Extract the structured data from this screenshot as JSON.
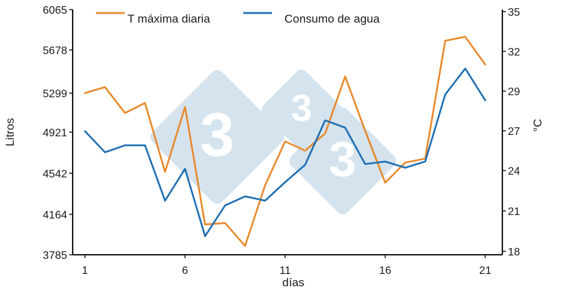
{
  "chart_data": {
    "type": "line",
    "x": [
      1,
      2,
      3,
      4,
      5,
      6,
      7,
      8,
      9,
      10,
      11,
      12,
      13,
      14,
      15,
      16,
      17,
      18,
      19,
      20,
      21
    ],
    "x_ticks": [
      "1",
      "6",
      "11",
      "16",
      "21"
    ],
    "xlabel": "días",
    "y_left": {
      "label": "Litros",
      "ticks": [
        "3785",
        "4164",
        "4542",
        "4921",
        "5299",
        "5678",
        "6065"
      ],
      "lim": [
        3785,
        6065
      ]
    },
    "y_right": {
      "label": "°C",
      "ticks": [
        "18",
        "21",
        "24",
        "27",
        "29",
        "32",
        "35"
      ],
      "lim": [
        17.5,
        35
      ]
    },
    "series": [
      {
        "name": "T máxima diaria",
        "axis": "right",
        "color": "#E8892B",
        "values": [
          28.9,
          29.3,
          27.9,
          28.4,
          23.9,
          28.2,
          20.0,
          20.1,
          18.4,
          22.9,
          26.2,
          25.5,
          26.8,
          30.1,
          27.0,
          23.1,
          24.6,
          24.9,
          32.8,
          33.1,
          31.0
        ]
      },
      {
        "name": "Consumo de agua",
        "axis": "left",
        "color": "#1F6FB2",
        "values": [
          4930,
          4735,
          4800,
          4800,
          4290,
          4583,
          3960,
          4245,
          4330,
          4290,
          4460,
          4620,
          5035,
          4965,
          4627,
          4650,
          4593,
          4650,
          5285,
          5515,
          5230
        ]
      }
    ],
    "grid": false,
    "legend": "top"
  }
}
